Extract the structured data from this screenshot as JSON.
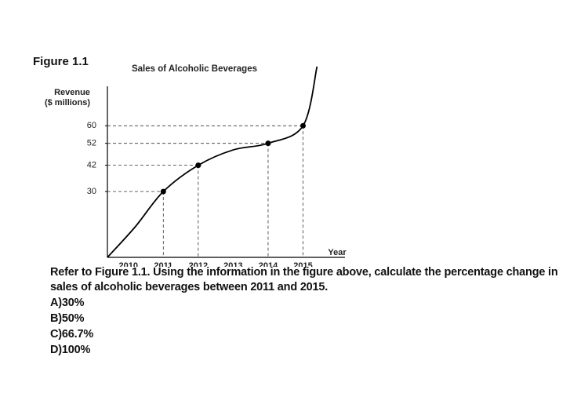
{
  "figure_label": "Figure 1.1",
  "chart_data": {
    "type": "line",
    "title": "Sales of Alcoholic Beverages",
    "ylabel": [
      "Revenue",
      "($ millions)"
    ],
    "xlabel": "Year",
    "x": [
      2009.4,
      2010.2,
      2011,
      2012,
      2013,
      2014,
      2015,
      2015.4
    ],
    "values": [
      0,
      14,
      30,
      42,
      49,
      52,
      60,
      87
    ],
    "points": {
      "x": [
        2011,
        2012,
        2014,
        2015
      ],
      "values": [
        30,
        42,
        52,
        60
      ]
    },
    "color": "#000000",
    "xlim": [
      2009.4,
      2016.2
    ],
    "xticks": [
      2010,
      2011,
      2012,
      2013,
      2014,
      2015
    ],
    "ylim": [
      0,
      78
    ],
    "yticks": [
      30,
      42,
      52,
      60
    ]
  },
  "question": "Refer to Figure 1.1. Using the information in the figure above, calculate the percentage change in sales of alcoholic beverages between 2011 and 2015.",
  "options": [
    "A)30%",
    "B)50%",
    "C)66.7%",
    "D)100%"
  ]
}
